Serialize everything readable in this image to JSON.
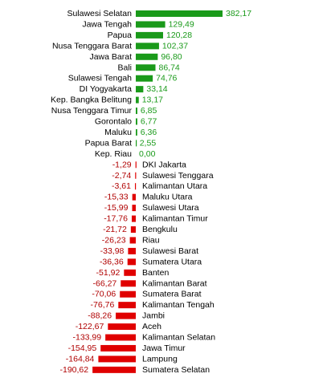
{
  "chart_data": {
    "type": "bar",
    "orientation": "horizontal",
    "categories": [
      "Sulawesi Selatan",
      "Jawa Tengah",
      "Papua",
      "Nusa Tenggara Barat",
      "Jawa Barat",
      "Bali",
      "Sulawesi Tengah",
      "DI Yogyakarta",
      "Kep. Bangka Belitung",
      "Nusa Tenggara Timur",
      "Gorontalo",
      "Maluku",
      "Papua Barat",
      "Kep. Riau",
      "DKI Jakarta",
      "Sulawesi Tenggara",
      "Kalimantan Utara",
      "Maluku Utara",
      "Sulawesi Utara",
      "Kalimantan Timur",
      "Bengkulu",
      "Riau",
      "Sulawesi Barat",
      "Sumatera Utara",
      "Banten",
      "Kalimantan Barat",
      "Sumatera Barat",
      "Kalimantan Tengah",
      "Jambi",
      "Aceh",
      "Kalimantan Selatan",
      "Jawa Timur",
      "Lampung",
      "Sumatera Selatan"
    ],
    "values": [
      382.17,
      129.49,
      120.28,
      102.37,
      96.8,
      86.74,
      74.76,
      33.14,
      13.17,
      6.85,
      6.77,
      6.36,
      2.55,
      0.0,
      -1.29,
      -2.74,
      -3.61,
      -15.33,
      -15.99,
      -17.76,
      -21.72,
      -26.23,
      -33.98,
      -36.36,
      -51.92,
      -66.27,
      -70.06,
      -76.76,
      -88.26,
      -122.67,
      -133.99,
      -154.95,
      -164.84,
      -190.62
    ],
    "value_labels": [
      "382,17",
      "129,49",
      "120,28",
      "102,37",
      "96,80",
      "86,74",
      "74,76",
      "33,14",
      "13,17",
      "6,85",
      "6,77",
      "6,36",
      "2,55",
      "0,00",
      "-1,29",
      "-2,74",
      "-3,61",
      "-15,33",
      "-15,99",
      "-17,76",
      "-21,72",
      "-26,23",
      "-33,98",
      "-36,36",
      "-51,92",
      "-66,27",
      "-70,06",
      "-76,76",
      "-88,26",
      "-122,67",
      "-133,99",
      "-154,95",
      "-164,84",
      "-190,62"
    ],
    "xlim": [
      -190.62,
      382.17
    ],
    "grid": false,
    "legend": "none",
    "title": "",
    "xlabel": "",
    "ylabel": "",
    "colors": {
      "positive": "#1a9a1a",
      "negative": "#e00000",
      "positive_text": "#1a9a1a",
      "negative_text": "#b00000",
      "label_text": "#000000"
    }
  }
}
